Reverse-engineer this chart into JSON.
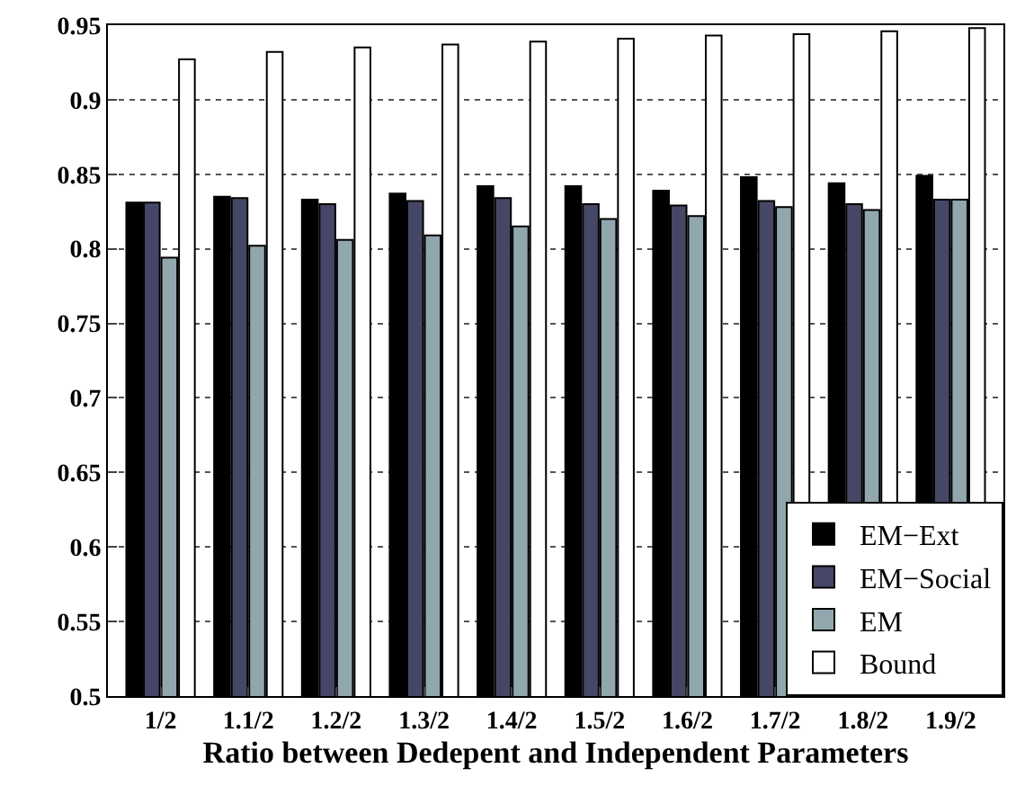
{
  "chart_data": {
    "type": "bar",
    "xlabel": "Ratio between Dedepent and Independent Parameters",
    "categories": [
      "1/2",
      "1.1/2",
      "1.2/2",
      "1.3/2",
      "1.4/2",
      "1.5/2",
      "1.6/2",
      "1.7/2",
      "1.8/2",
      "1.9/2"
    ],
    "series": [
      {
        "name": "EM−Ext",
        "color": "#000000",
        "values": [
          0.831,
          0.835,
          0.833,
          0.837,
          0.842,
          0.842,
          0.839,
          0.848,
          0.844,
          0.849
        ]
      },
      {
        "name": "EM−Social",
        "color": "#464766",
        "values": [
          0.831,
          0.834,
          0.83,
          0.832,
          0.834,
          0.83,
          0.829,
          0.832,
          0.83,
          0.833
        ]
      },
      {
        "name": "EM",
        "color": "#91a7ad",
        "values": [
          0.794,
          0.802,
          0.806,
          0.809,
          0.815,
          0.82,
          0.822,
          0.828,
          0.826,
          0.833
        ]
      },
      {
        "name": "Bound",
        "color": "#ffffff",
        "values": [
          0.927,
          0.932,
          0.935,
          0.937,
          0.939,
          0.941,
          0.943,
          0.944,
          0.946,
          0.948
        ]
      }
    ],
    "ylim": [
      0.5,
      0.95
    ],
    "yticks": [
      0.5,
      0.55,
      0.6,
      0.65,
      0.7,
      0.75,
      0.8,
      0.85,
      0.9,
      0.95
    ],
    "grid": "y",
    "legend": "bottom right"
  }
}
